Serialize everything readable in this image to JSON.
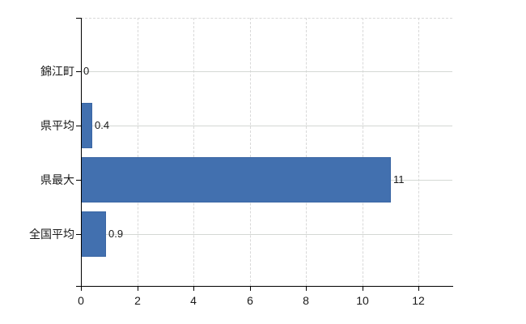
{
  "chart": {
    "background": "#ffffff",
    "bar_color": "#4270af",
    "bar_border_color": "#3a66a4",
    "grid_color": "#d4d8d4",
    "dash_color": "#d8d8d8",
    "axis_color": "#000000",
    "text_color": "#1a1a1a"
  },
  "chart_data": {
    "type": "bar",
    "orientation": "horizontal",
    "categories": [
      "錦江町",
      "県平均",
      "県最大",
      "全国平均"
    ],
    "values": [
      0,
      0.4,
      11,
      0.9
    ],
    "value_labels": [
      "0",
      "0.4",
      "11",
      "0.9"
    ],
    "xticks": [
      "0",
      "2",
      "4",
      "6",
      "8",
      "10",
      "12"
    ],
    "xtick_values": [
      0,
      2,
      4,
      6,
      8,
      10,
      12
    ],
    "xlim": [
      0,
      13.2
    ],
    "grid": "horizontal-solid, vertical-dashed, top-border-dashed",
    "legend_position": "none",
    "title": ""
  }
}
